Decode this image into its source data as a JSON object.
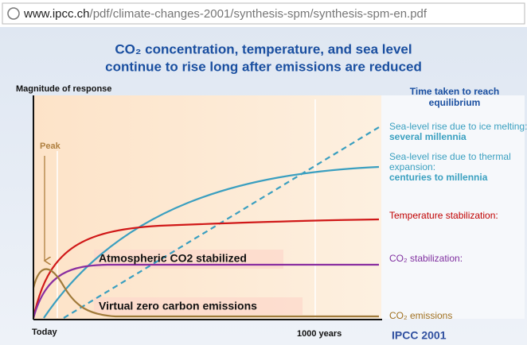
{
  "browser": {
    "url_host": "www.ipcc.ch",
    "url_path": "/pdf/climate-changes-2001/synthesis-spm/synthesis-spm-en.pdf"
  },
  "slide": {
    "title_line1": "CO₂ concentration, temperature, and sea level",
    "title_line2": "continue to rise long after emissions are reduced",
    "y_axis_label": "Magnitude of response",
    "legend_heading_line1": "Time taken to reach",
    "legend_heading_line2": "equilibrium",
    "peak_label": "Peak",
    "legend": [
      {
        "lines": [
          "Sea-level rise due to ice melting:"
        ],
        "emphasis": "several millennia"
      },
      {
        "lines": [
          "Sea-level rise due to thermal",
          "expansion:"
        ],
        "emphasis": "centuries to millennia"
      },
      {
        "lines": [
          "Temperature stabilization:"
        ]
      },
      {
        "lines": [
          "CO₂ stabilization:"
        ]
      },
      {
        "lines": [
          "CO₂ emissions"
        ]
      }
    ],
    "annotation_stabilized": "Atmospheric CO2 stabilized",
    "annotation_zero": "Virtual zero carbon emissions",
    "x_start_label": "Today",
    "x_end_label": "1000 years",
    "source": "IPCC 2001"
  }
}
